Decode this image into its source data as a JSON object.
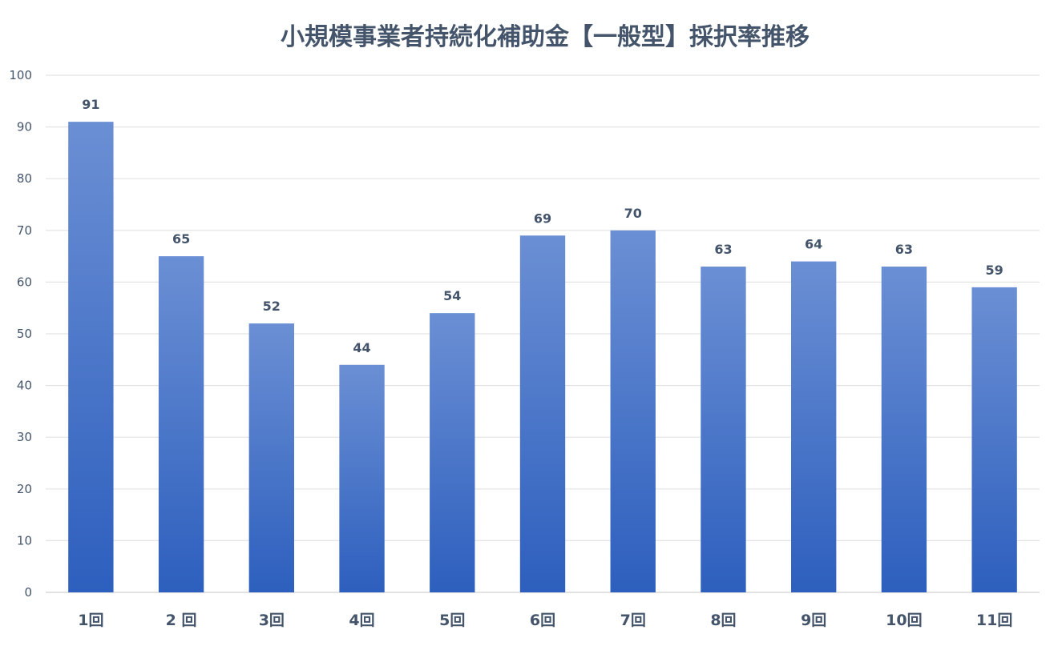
{
  "chart_data": {
    "type": "bar",
    "title": "小規模事業者持続化補助金【一般型】採択率推移",
    "xlabel": "",
    "ylabel": "",
    "categories": [
      "1回",
      "2 回",
      "3回",
      "4回",
      "5回",
      "6回",
      "7回",
      "8回",
      "9回",
      "10回",
      "11回"
    ],
    "values": [
      91,
      65,
      52,
      44,
      54,
      69,
      70,
      63,
      64,
      63,
      59
    ],
    "data_labels": [
      "91",
      "65",
      "52",
      "44",
      "54",
      "69",
      "70",
      "63",
      "64",
      "63",
      "59"
    ],
    "ylim": [
      0,
      100
    ],
    "yticks": [
      "0",
      "10",
      "20",
      "30",
      "40",
      "50",
      "60",
      "70",
      "80",
      "90",
      "100"
    ],
    "grid": true,
    "legend": "none",
    "colors": {
      "bar_top": "#6b8fd4",
      "bar_bottom": "#2d5fbe",
      "text": "#44546a",
      "grid": "#e3e3e3"
    }
  }
}
